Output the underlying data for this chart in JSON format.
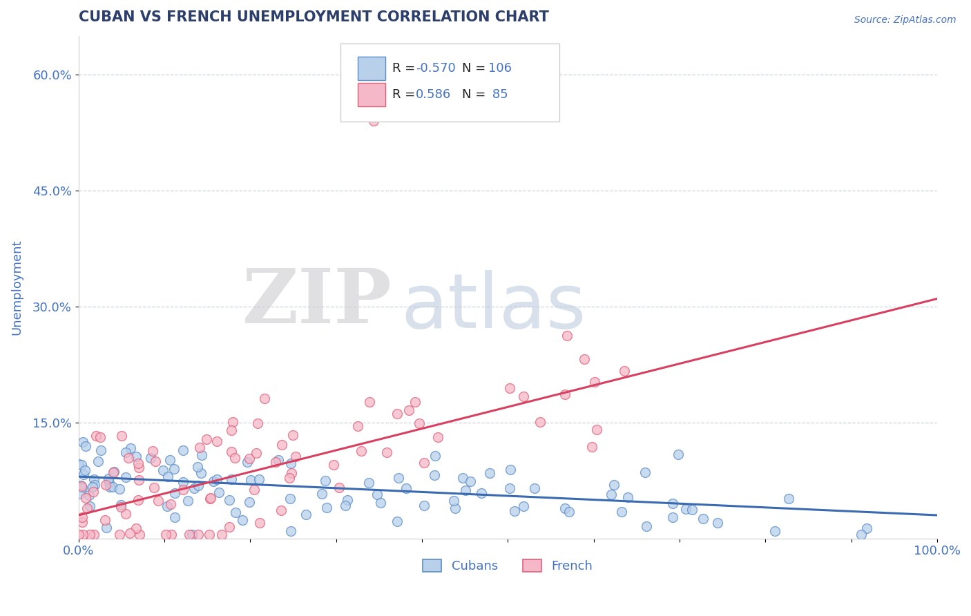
{
  "title": "CUBAN VS FRENCH UNEMPLOYMENT CORRELATION CHART",
  "source": "Source: ZipAtlas.com",
  "ylabel": "Unemployment",
  "xlim": [
    0,
    1
  ],
  "ylim": [
    0,
    0.65
  ],
  "yticks": [
    0.15,
    0.3,
    0.45,
    0.6
  ],
  "ytick_labels": [
    "15.0%",
    "30.0%",
    "45.0%",
    "60.0%"
  ],
  "xticks": [
    0.0,
    0.1,
    0.2,
    0.3,
    0.4,
    0.5,
    0.6,
    0.7,
    0.8,
    0.9,
    1.0
  ],
  "xtick_labels": [
    "0.0%",
    "",
    "",
    "",
    "",
    "",
    "",
    "",
    "",
    "",
    "100.0%"
  ],
  "cubans_R": -0.57,
  "cubans_N": 106,
  "french_R": 0.586,
  "french_N": 85,
  "blue_fill": "#b8d0ea",
  "blue_edge": "#5b8dc8",
  "pink_fill": "#f5b8c8",
  "pink_edge": "#e0607a",
  "blue_line_color": "#3a6ab0",
  "pink_line_color": "#d84060",
  "legend_R_color": "#4472c4",
  "title_color": "#2c3e6b",
  "axis_color": "#4472c4",
  "background_color": "#ffffff",
  "watermark_ZIP_color": "#c8c8cc",
  "watermark_atlas_color": "#b8c8dc",
  "watermark_alpha": 0.55,
  "grid_color": "#c0c8d4",
  "seed": 42,
  "marker_size": 100,
  "marker_lw": 1.0,
  "cubans_line_x0": 0.0,
  "cubans_line_y0": 0.08,
  "cubans_line_x1": 1.0,
  "cubans_line_y1": 0.03,
  "french_line_x0": 0.0,
  "french_line_y0": 0.03,
  "french_line_x1": 1.0,
  "french_line_y1": 0.31
}
